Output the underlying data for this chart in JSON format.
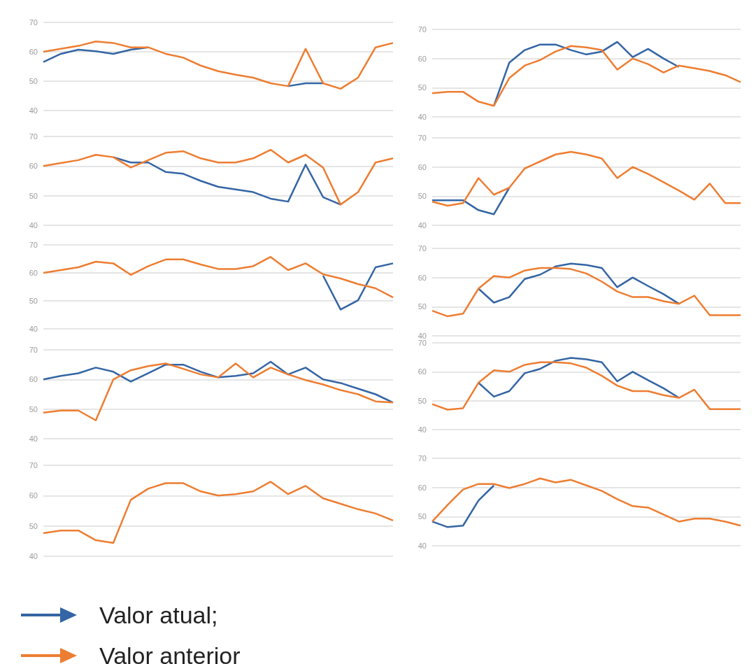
{
  "chart_data": [
    {
      "type": "line",
      "categories": [
        null,
        null,
        null,
        null,
        null,
        null,
        null,
        null,
        null,
        null,
        null,
        null,
        null,
        null,
        null,
        null,
        null,
        null,
        null,
        null,
        null
      ],
      "ylim": [
        40,
        70
      ],
      "yticks": [
        40,
        50,
        60,
        70
      ],
      "grid": "y",
      "marker": "none",
      "legend": "bottom left",
      "series": [
        {
          "name": "Valor atual;",
          "color": "#3465a4",
          "values": [
            56.5,
            59.3,
            60.7,
            60.2,
            59.3,
            60.7,
            61.5,
            null,
            null,
            null,
            null,
            null,
            null,
            null,
            48.3,
            49.3,
            49.3,
            null,
            null,
            null,
            null
          ]
        },
        {
          "name": "Valor anterior",
          "color": "#ed7d31",
          "values": [
            60,
            61,
            62,
            63.5,
            63,
            61.5,
            61.5,
            59.3,
            58,
            55.3,
            53.4,
            52.2,
            51.2,
            49.3,
            48.3,
            61,
            49.3,
            47.4,
            51.2,
            61.5,
            63
          ]
        }
      ]
    },
    {
      "type": "line",
      "categories": [
        null,
        null,
        null,
        null,
        null,
        null,
        null,
        null,
        null,
        null,
        null,
        null,
        null,
        null,
        null,
        null,
        null,
        null,
        null,
        null,
        null
      ],
      "ylim": [
        40,
        70
      ],
      "yticks": [
        40,
        50,
        60,
        70
      ],
      "grid": "y",
      "marker": "none",
      "series": [
        {
          "color": "#3465a4",
          "values": [
            null,
            null,
            null,
            null,
            43.8,
            58.6,
            62.9,
            64.8,
            64.8,
            62.9,
            61.4,
            62.4,
            65.7,
            60.5,
            63.3,
            60,
            57.1,
            null,
            null,
            null,
            null
          ]
        },
        {
          "color": "#ed7d31",
          "values": [
            48.1,
            48.6,
            48.6,
            45.2,
            43.8,
            53.3,
            57.6,
            59.5,
            62.4,
            64.3,
            63.8,
            62.9,
            56.2,
            60,
            58.1,
            55.2,
            57.6,
            56.7,
            55.7,
            54.3,
            51.9
          ]
        }
      ]
    },
    {
      "type": "line",
      "categories": [
        null,
        null,
        null,
        null,
        null,
        null,
        null,
        null,
        null,
        null,
        null,
        null,
        null,
        null,
        null,
        null,
        null,
        null,
        null,
        null,
        null
      ],
      "ylim": [
        40,
        70
      ],
      "yticks": [
        40,
        50,
        60,
        70
      ],
      "grid": "y",
      "marker": "none",
      "series": [
        {
          "color": "#3465a4",
          "values": [
            null,
            null,
            null,
            null,
            63,
            61.2,
            61.2,
            58,
            57.4,
            55,
            53,
            52.1,
            51.2,
            49,
            48,
            60.5,
            49.5,
            47,
            null,
            null,
            null
          ]
        },
        {
          "color": "#ed7d31",
          "values": [
            60,
            61,
            62,
            63.8,
            63,
            59.5,
            62,
            64.5,
            65,
            62.6,
            61.2,
            61.2,
            62.6,
            65.5,
            61.2,
            63.8,
            59.5,
            47,
            51.2,
            61.2,
            62.6
          ]
        }
      ]
    },
    {
      "type": "line",
      "categories": [
        null,
        null,
        null,
        null,
        null,
        null,
        null,
        null,
        null,
        null,
        null,
        null,
        null,
        null,
        null,
        null,
        null,
        null,
        null,
        null,
        null
      ],
      "ylim": [
        40,
        70
      ],
      "yticks": [
        40,
        50,
        60,
        70
      ],
      "grid": "y",
      "marker": "none",
      "series": [
        {
          "color": "#3465a4",
          "values": [
            48.6,
            48.6,
            48.6,
            45.2,
            43.8,
            52.9,
            null,
            null,
            null,
            null,
            null,
            null,
            null,
            null,
            null,
            null,
            null,
            null,
            null,
            null,
            null
          ]
        },
        {
          "color": "#ed7d31",
          "values": [
            48.1,
            46.7,
            47.6,
            56.2,
            50.5,
            52.9,
            59.5,
            61.9,
            64.3,
            65.2,
            64.3,
            62.9,
            56.2,
            60,
            57.6,
            54.8,
            51.9,
            48.8,
            54.3,
            47.6,
            47.6
          ]
        }
      ]
    },
    {
      "type": "line",
      "categories": [
        null,
        null,
        null,
        null,
        null,
        null,
        null,
        null,
        null,
        null,
        null,
        null,
        null,
        null,
        null,
        null,
        null,
        null,
        null,
        null,
        null
      ],
      "ylim": [
        40,
        70
      ],
      "yticks": [
        40,
        50,
        60,
        70
      ],
      "grid": "y",
      "marker": "none",
      "series": [
        {
          "color": "#3465a4",
          "values": [
            null,
            null,
            null,
            null,
            null,
            null,
            null,
            null,
            null,
            null,
            null,
            null,
            null,
            null,
            null,
            null,
            59,
            46.9,
            50.2,
            62,
            63.4
          ]
        },
        {
          "color": "#ed7d31",
          "values": [
            60,
            61,
            62,
            64,
            63.4,
            59.3,
            62.4,
            64.8,
            64.8,
            63,
            61.4,
            61.4,
            62.4,
            65.7,
            61,
            63.4,
            59.5,
            58,
            56,
            54.5,
            51.2
          ]
        }
      ]
    },
    {
      "type": "line",
      "categories": [
        null,
        null,
        null,
        null,
        null,
        null,
        null,
        null,
        null,
        null,
        null,
        null,
        null,
        null,
        null,
        null,
        null,
        null,
        null,
        null,
        null
      ],
      "ylim": [
        40,
        70
      ],
      "yticks": [
        40,
        50,
        60,
        70
      ],
      "grid": "y",
      "marker": "none",
      "series": [
        {
          "color": "#3465a4",
          "values": [
            null,
            null,
            null,
            56.2,
            51.4,
            53.3,
            59.5,
            61,
            63.8,
            64.8,
            64.3,
            63.3,
            56.7,
            60,
            57.1,
            54.3,
            51,
            null,
            null,
            null,
            null
          ]
        },
        {
          "color": "#ed7d31",
          "values": [
            48.6,
            46.7,
            47.6,
            56.2,
            60.5,
            60,
            62.4,
            63.3,
            63.3,
            62.9,
            61.4,
            58.6,
            55.2,
            53.3,
            53.3,
            51.9,
            51,
            53.8,
            47.1,
            47.1,
            47.1
          ]
        }
      ]
    },
    {
      "type": "line",
      "categories": [
        null,
        null,
        null,
        null,
        null,
        null,
        null,
        null,
        null,
        null,
        null,
        null,
        null,
        null,
        null,
        null,
        null,
        null,
        null,
        null,
        null
      ],
      "ylim": [
        40,
        70
      ],
      "yticks": [
        40,
        50,
        60,
        70
      ],
      "grid": "y",
      "marker": "none",
      "series": [
        {
          "color": "#3465a4",
          "values": [
            60,
            61.2,
            62.1,
            64,
            62.6,
            59.3,
            62.1,
            65,
            65,
            62.6,
            60.7,
            61.2,
            62.1,
            66,
            61.7,
            64,
            60,
            58.8,
            56.9,
            55,
            52.2
          ]
        },
        {
          "color": "#ed7d31",
          "values": [
            48.8,
            49.5,
            49.5,
            46.2,
            60,
            63.1,
            64.5,
            65.4,
            63.6,
            61.7,
            60.7,
            65.4,
            60.7,
            64,
            61.7,
            59.8,
            58.3,
            56.4,
            55,
            52.6,
            52.2
          ]
        }
      ]
    },
    {
      "type": "line",
      "categories": [
        null,
        null,
        null,
        null,
        null,
        null,
        null,
        null,
        null,
        null,
        null,
        null,
        null,
        null,
        null,
        null,
        null,
        null,
        null,
        null,
        null
      ],
      "ylim": [
        40,
        70
      ],
      "yticks": [
        40,
        50,
        60,
        70
      ],
      "grid": "y",
      "marker": "none",
      "series": [
        {
          "color": "#3465a4",
          "values": [
            null,
            null,
            null,
            56.2,
            51.4,
            53.3,
            59.5,
            61,
            63.8,
            64.8,
            64.3,
            63.3,
            56.7,
            60,
            57.1,
            54.3,
            51,
            null,
            null,
            null,
            null
          ]
        },
        {
          "color": "#ed7d31",
          "values": [
            48.8,
            46.9,
            47.4,
            56.2,
            60.5,
            60,
            62.4,
            63.3,
            63.3,
            62.9,
            61.4,
            58.6,
            55.2,
            53.3,
            53.3,
            51.9,
            51,
            53.8,
            47.1,
            47.1,
            47.1
          ]
        }
      ]
    },
    {
      "type": "line",
      "categories": [
        null,
        null,
        null,
        null,
        null,
        null,
        null,
        null,
        null,
        null,
        null,
        null,
        null,
        null,
        null,
        null,
        null,
        null,
        null,
        null,
        null
      ],
      "ylim": [
        40,
        70
      ],
      "yticks": [
        40,
        50,
        60,
        70
      ],
      "grid": "y",
      "marker": "none",
      "series": [
        {
          "color": "#ed7d31",
          "values": [
            47.6,
            48.5,
            48.5,
            45.3,
            44.4,
            58.6,
            62.3,
            64.1,
            64.1,
            61.4,
            60,
            60.5,
            61.4,
            64.6,
            60.5,
            63.2,
            59.1,
            57.3,
            55.5,
            54.1,
            51.8
          ]
        }
      ]
    },
    {
      "type": "line",
      "categories": [
        null,
        null,
        null,
        null,
        null,
        null,
        null,
        null,
        null,
        null,
        null,
        null,
        null,
        null,
        null,
        null,
        null,
        null,
        null,
        null,
        null
      ],
      "ylim": [
        40,
        70
      ],
      "yticks": [
        40,
        50,
        60,
        70
      ],
      "grid": "y",
      "marker": "none",
      "series": [
        {
          "color": "#3465a4",
          "values": [
            48.3,
            46.4,
            46.9,
            55.5,
            60.7,
            null,
            null,
            null,
            null,
            null,
            null,
            null,
            null,
            null,
            null,
            null,
            null,
            null,
            null,
            null,
            null
          ]
        },
        {
          "color": "#ed7d31",
          "values": [
            48.3,
            54,
            59.3,
            61.2,
            61.2,
            59.8,
            61.2,
            63.1,
            61.7,
            62.6,
            60.7,
            58.8,
            56,
            53.6,
            53.1,
            50.7,
            48.3,
            49.3,
            49.3,
            48.3,
            46.9
          ]
        }
      ]
    }
  ]
}
